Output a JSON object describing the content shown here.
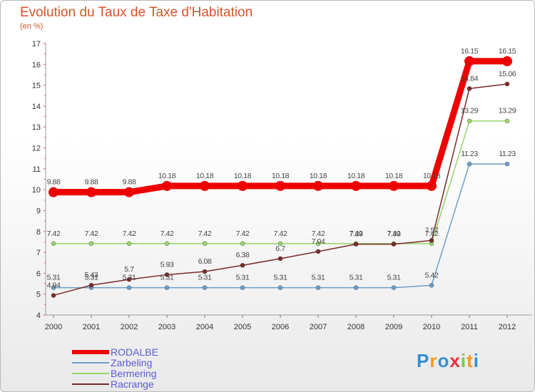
{
  "chart_data": {
    "type": "line",
    "title": "Evolution du Taux de Taxe d'Habitation",
    "subtitle": "(en %)",
    "xlabel": "",
    "ylabel": "",
    "ylim": [
      4,
      17
    ],
    "yticks": [
      "4",
      "5",
      "6",
      "7",
      "8",
      "9",
      "10",
      "11",
      "12",
      "13",
      "14",
      "15",
      "16",
      "17"
    ],
    "categories": [
      "2000",
      "2001",
      "2002",
      "2003",
      "2004",
      "2005",
      "2006",
      "2007",
      "2008",
      "2009",
      "2010",
      "2011",
      "2012"
    ],
    "series": [
      {
        "name": "RODALBE",
        "color": "#ee0000",
        "values": [
          9.88,
          9.88,
          9.88,
          10.18,
          10.18,
          10.18,
          10.18,
          10.18,
          10.18,
          10.18,
          10.18,
          16.15,
          16.15
        ],
        "labels": [
          "9.88",
          "9.88",
          "9.88",
          "10.18",
          "10.18",
          "10.18",
          "10.18",
          "10.18",
          "10.18",
          "10.18",
          "10.18",
          "16.15",
          "16.15"
        ]
      },
      {
        "name": "Zarbeling",
        "color": "#6d9ec8",
        "values": [
          5.31,
          5.31,
          5.31,
          5.31,
          5.31,
          5.31,
          5.31,
          5.31,
          5.31,
          5.31,
          5.42,
          11.23,
          11.23
        ],
        "labels": [
          "5.31",
          "5.31",
          "5.31",
          "5.31",
          "5.31",
          "5.31",
          "5.31",
          "5.31",
          "5.31",
          "5.31",
          "5.42",
          "11.23",
          "11.23"
        ]
      },
      {
        "name": "Bermering",
        "color": "#97d46a",
        "values": [
          7.42,
          7.42,
          7.42,
          7.42,
          7.42,
          7.42,
          7.42,
          7.42,
          7.42,
          7.42,
          7.42,
          13.29,
          13.29
        ],
        "labels": [
          "7.42",
          "7.42",
          "7.42",
          "7.42",
          "7.42",
          "7.42",
          "7.42",
          "7.42",
          "7.42",
          "7.42",
          "7.42",
          "13.29",
          "13.29"
        ]
      },
      {
        "name": "Racrange",
        "color": "#7a2a2a",
        "values": [
          4.94,
          5.43,
          5.7,
          5.93,
          6.08,
          6.38,
          6.7,
          7.04,
          7.39,
          7.39,
          7.57,
          14.84,
          15.06
        ],
        "labels": [
          "4.94",
          "5.43",
          "5.7",
          "5.93",
          "6.08",
          "6.38",
          "6.7",
          "7.04",
          "7.39",
          "7.39",
          "7.57",
          "14.84",
          "15.06"
        ]
      }
    ],
    "legend": [
      "RODALBE",
      "Zarbeling",
      "Bermering",
      "Racrange"
    ],
    "legend_position": "bottom-left"
  },
  "logo": {
    "letters": [
      "P",
      "r",
      "o",
      "x",
      "i",
      "t",
      "i"
    ],
    "colors": [
      "#2e8fd6",
      "#f39a1f",
      "#3a8fd2",
      "#e6333f",
      "#7ac943",
      "#f39a1f",
      "#2e8fd6"
    ]
  }
}
